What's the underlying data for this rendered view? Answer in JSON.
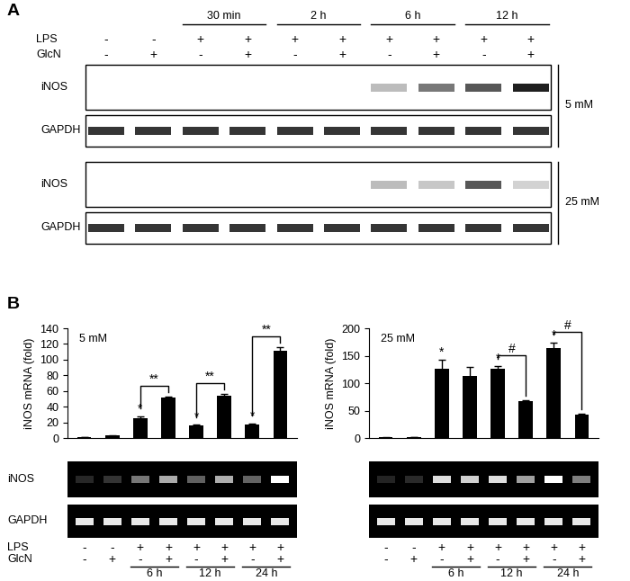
{
  "panel_A": {
    "label": "A",
    "row_labels": [
      "LPS",
      "GlcN"
    ],
    "LPS": [
      "-",
      "-",
      "+",
      "+",
      "+",
      "+",
      "+",
      "+",
      "+",
      "+"
    ],
    "GlcN": [
      "-",
      "+",
      "-",
      "+",
      "-",
      "+",
      "-",
      "+",
      "-",
      "+"
    ],
    "time_groups": [
      {
        "label": "30 min",
        "lanes": [
          2,
          3
        ]
      },
      {
        "label": "2 h",
        "lanes": [
          4,
          5
        ]
      },
      {
        "label": "6 h",
        "lanes": [
          6,
          7
        ]
      },
      {
        "label": "12 h",
        "lanes": [
          8,
          9
        ]
      }
    ],
    "blots": [
      {
        "concentration": "5 mM",
        "rows": [
          {
            "name": "iNOS",
            "bands": [
              0,
              0,
              0,
              0,
              0,
              0,
              0.3,
              0.6,
              0.75,
              1.0
            ]
          },
          {
            "name": "GAPDH",
            "bands": [
              0.9,
              0.9,
              0.9,
              0.9,
              0.9,
              0.9,
              0.9,
              0.9,
              0.9,
              0.9
            ]
          }
        ]
      },
      {
        "concentration": "25 mM",
        "rows": [
          {
            "name": "iNOS",
            "bands": [
              0,
              0,
              0,
              0,
              0,
              0,
              0.3,
              0.25,
              0.75,
              0.2
            ]
          },
          {
            "name": "GAPDH",
            "bands": [
              0.9,
              0.9,
              0.9,
              0.9,
              0.9,
              0.9,
              0.9,
              0.9,
              0.9,
              0.9
            ]
          }
        ]
      }
    ]
  },
  "panel_B": {
    "label": "B",
    "gel_rows": [
      "iNOS",
      "GAPDH"
    ],
    "row_labels": [
      "LPS",
      "GlcN"
    ]
  },
  "chart_data": [
    {
      "type": "bar",
      "annotation": "5 mM",
      "y_label": "iNOS mRNA (fold)",
      "categories": [
        null,
        null,
        null,
        null,
        null,
        null,
        null,
        null
      ],
      "values": [
        1,
        3,
        25,
        52,
        16,
        54,
        17,
        111
      ],
      "errors": [
        0.3,
        0.5,
        3,
        1,
        1,
        2,
        1.5,
        5
      ],
      "color": "#000000",
      "ylim": [
        0,
        140
      ],
      "yticks": [
        0,
        20,
        40,
        60,
        80,
        100,
        120,
        140
      ],
      "markers": [
        {
          "index": 2,
          "label": "*"
        },
        {
          "index": 4,
          "label": "*"
        },
        {
          "index": 6,
          "label": "*"
        }
      ],
      "brackets": [
        {
          "from": 2,
          "to": 3,
          "label": "**"
        },
        {
          "from": 4,
          "to": 5,
          "label": "**"
        },
        {
          "from": 6,
          "to": 7,
          "label": "**"
        }
      ],
      "LPS": [
        "-",
        "-",
        "+",
        "+",
        "+",
        "+",
        "+",
        "+"
      ],
      "GlcN": [
        "-",
        "+",
        "-",
        "+",
        "-",
        "+",
        "-",
        "+"
      ],
      "time_groups": [
        {
          "label": "6 h",
          "lanes": [
            2,
            3
          ]
        },
        {
          "label": "12 h",
          "lanes": [
            4,
            5
          ]
        },
        {
          "label": "24 h",
          "lanes": [
            6,
            7
          ]
        }
      ]
    },
    {
      "type": "bar",
      "annotation": "25 mM",
      "y_label": "iNOS mRNA (fold)",
      "categories": [
        null,
        null,
        null,
        null,
        null,
        null,
        null,
        null
      ],
      "values": [
        1,
        2,
        127,
        113,
        127,
        67,
        164,
        42
      ],
      "errors": [
        0.3,
        0.3,
        15,
        16,
        4,
        2,
        10,
        3
      ],
      "color": "#000000",
      "ylim": [
        0,
        200
      ],
      "yticks": [
        0,
        50,
        100,
        150,
        200
      ],
      "markers": [
        {
          "index": 2,
          "label": "*"
        },
        {
          "index": 4,
          "label": "*"
        },
        {
          "index": 6,
          "label": "*"
        }
      ],
      "brackets": [
        {
          "from": 4,
          "to": 5,
          "label": "#"
        },
        {
          "from": 6,
          "to": 7,
          "label": "#"
        }
      ],
      "LPS": [
        "-",
        "-",
        "+",
        "+",
        "+",
        "+",
        "+",
        "+"
      ],
      "GlcN": [
        "-",
        "+",
        "-",
        "+",
        "-",
        "+",
        "-",
        "+"
      ],
      "time_groups": [
        {
          "label": "6 h",
          "lanes": [
            2,
            3
          ]
        },
        {
          "label": "12 h",
          "lanes": [
            4,
            5
          ]
        },
        {
          "label": "24 h",
          "lanes": [
            6,
            7
          ]
        }
      ]
    }
  ]
}
